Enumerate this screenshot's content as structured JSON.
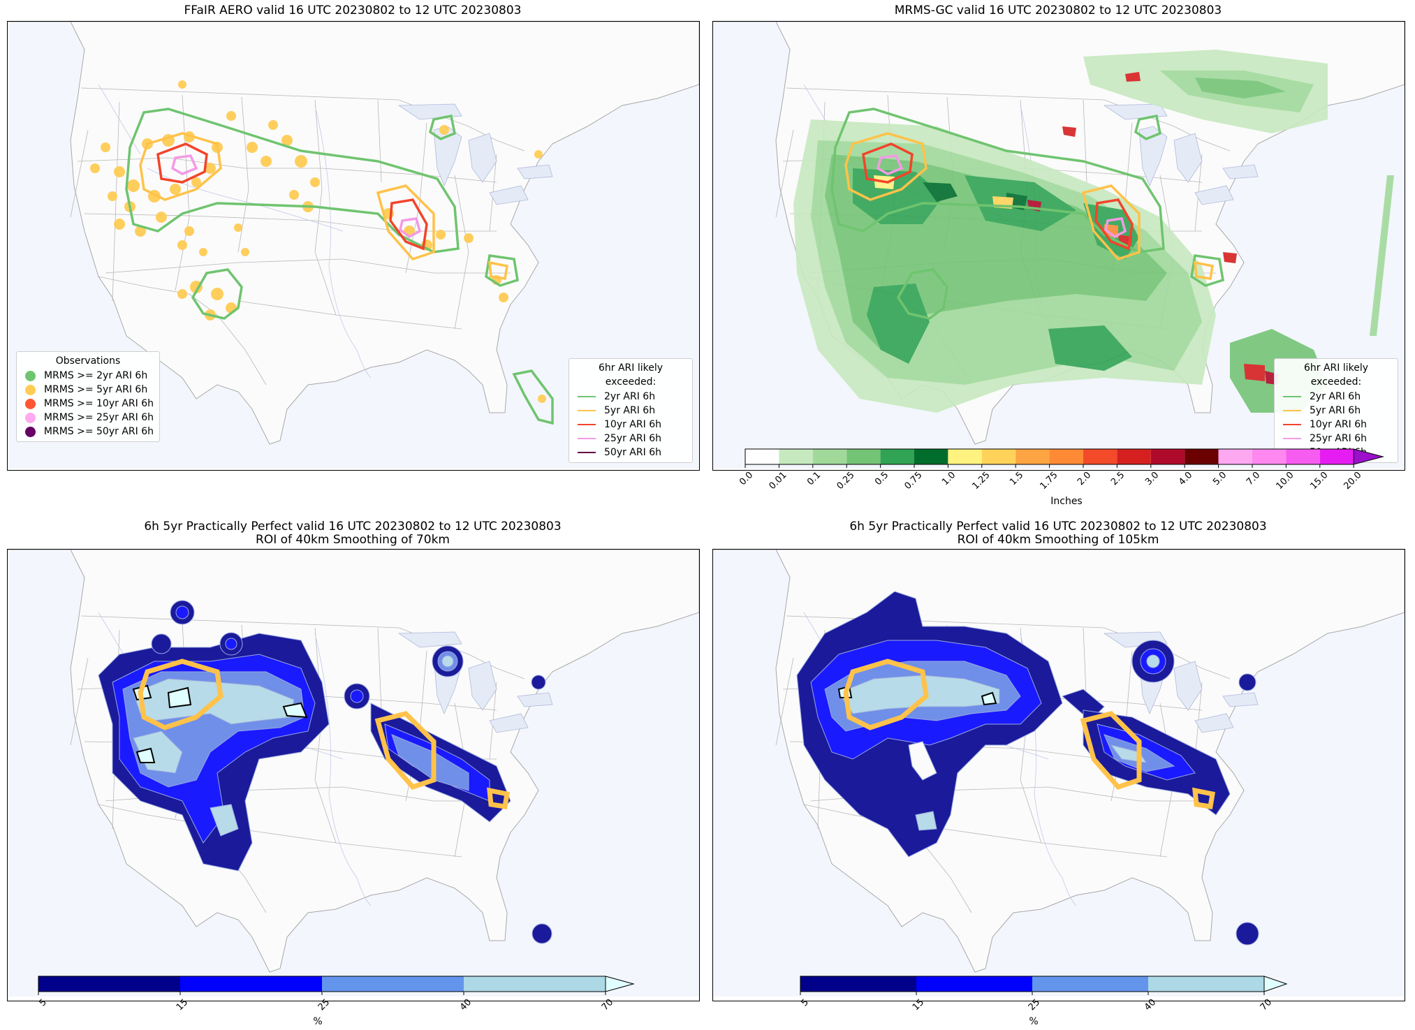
{
  "panels": [
    {
      "title": "FFaIR AERO valid 16 UTC 20230802 to 12 UTC 20230803"
    },
    {
      "title": "MRMS-GC valid 16 UTC 20230802 to 12 UTC 20230803"
    },
    {
      "title_line1": "6h 5yr Practically Perfect valid 16 UTC 20230802 to 12 UTC 20230803",
      "title_line2": "ROI of 40km Smoothing of 70km"
    },
    {
      "title_line1": "6h 5yr Practically Perfect valid 16 UTC 20230802 to 12 UTC 20230803",
      "title_line2": "ROI of 40km Smoothing of 105km"
    }
  ],
  "observations_legend": {
    "title": "Observations",
    "items": [
      {
        "label": "MRMS >= 2yr ARI 6h",
        "color": "#6fc46f"
      },
      {
        "label": "MRMS >= 5yr ARI 6h",
        "color": "#ffcc55"
      },
      {
        "label": "MRMS >= 10yr ARI 6h",
        "color": "#ff5533"
      },
      {
        "label": "MRMS >= 25yr ARI 6h",
        "color": "#ffaaee"
      },
      {
        "label": "MRMS >= 50yr ARI 6h",
        "color": "#660066"
      }
    ]
  },
  "ari_legend": {
    "title": "6hr ARI likely exceeded:",
    "items": [
      {
        "label": "2yr ARI 6h",
        "color": "#6fc46f"
      },
      {
        "label": "5yr ARI 6h",
        "color": "#ffc24a"
      },
      {
        "label": "10yr ARI 6h",
        "color": "#f2442b"
      },
      {
        "label": "25yr ARI 6h",
        "color": "#f49ae4"
      },
      {
        "label": "50yr ARI 6h",
        "color": "#660044"
      }
    ]
  },
  "precip_colorbar": {
    "label": "Inches",
    "ticks": [
      "0.0",
      "0.01",
      "0.1",
      "0.25",
      "0.5",
      "0.75",
      "1.0",
      "1.25",
      "1.5",
      "1.75",
      "2.0",
      "2.5",
      "3.0",
      "4.0",
      "5.0",
      "7.0",
      "10.0",
      "15.0",
      "20.0"
    ],
    "colors": [
      "#ffffff",
      "#c7e9c0",
      "#a1d99b",
      "#74c476",
      "#31a354",
      "#006d2c",
      "#fff380",
      "#ffd35a",
      "#ffa442",
      "#fe8a36",
      "#f34a2a",
      "#d62020",
      "#b00a2a",
      "#6b0000",
      "#ffa8f2",
      "#ff88f0",
      "#f65cf0",
      "#e61df2",
      "#9c10cc"
    ]
  },
  "prob_colorbar_70": {
    "label": "%",
    "ticks": [
      "5",
      "15",
      "25",
      "40",
      "70"
    ],
    "colors": [
      "#00008b",
      "#0000ff",
      "#6495ed",
      "#add8e6",
      "#e0ffff"
    ]
  },
  "prob_colorbar_105": {
    "label": "%",
    "ticks": [
      "5",
      "15",
      "25",
      "40",
      "70"
    ],
    "colors": [
      "#00008b",
      "#0000ff",
      "#6495ed",
      "#add8e6",
      "#e0ffff"
    ]
  }
}
